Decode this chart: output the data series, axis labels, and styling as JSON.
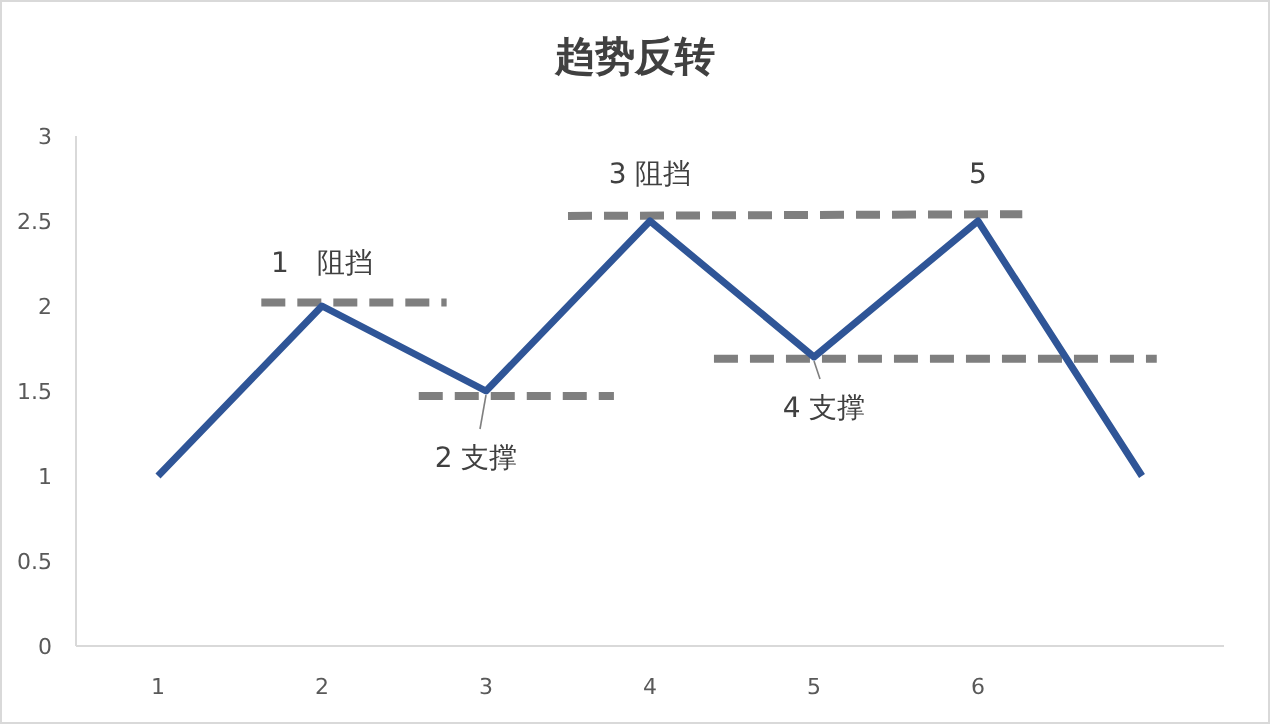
{
  "chart_data": {
    "type": "line",
    "title": "趋势反转",
    "xlim": [
      0.5,
      7.5
    ],
    "xticks": [
      1,
      2,
      3,
      4,
      5,
      6
    ],
    "ylim": [
      0,
      3
    ],
    "yticks": [
      0,
      0.5,
      1,
      1.5,
      2,
      2.5,
      3
    ],
    "grid": false,
    "marker": "none",
    "series": [
      {
        "color": "#2f5597",
        "x": [
          1,
          2,
          3,
          4,
          5,
          6,
          7
        ],
        "values": [
          1,
          2,
          1.5,
          2.5,
          1.7,
          2.5,
          1
        ],
        "line_style": "solid"
      },
      {
        "color": "#7f7f7f",
        "x": [
          1.63,
          2.76
        ],
        "values": [
          2.02,
          2.02
        ],
        "line_style": "dashed"
      },
      {
        "color": "#7f7f7f",
        "x": [
          2.59,
          3.78
        ],
        "values": [
          1.47,
          1.47
        ],
        "line_style": "dashed"
      },
      {
        "color": "#7f7f7f",
        "x": [
          3.5,
          6.27
        ],
        "values": [
          2.53,
          2.54
        ],
        "line_style": "dashed"
      },
      {
        "color": "#7f7f7f",
        "x": [
          4.39,
          7.09
        ],
        "values": [
          1.69,
          1.69
        ],
        "line_style": "dashed"
      }
    ],
    "annotations": [
      {
        "text": "1　阻挡",
        "x": 2,
        "y": 2
      },
      {
        "text": "2 支撑",
        "x": 3,
        "y": 1.5
      },
      {
        "text": "3 阻挡",
        "x": 4,
        "y": 2.5
      },
      {
        "text": "4 支撑",
        "x": 5,
        "y": 1.7
      },
      {
        "text": "5",
        "x": 6,
        "y": 2.5
      }
    ]
  }
}
